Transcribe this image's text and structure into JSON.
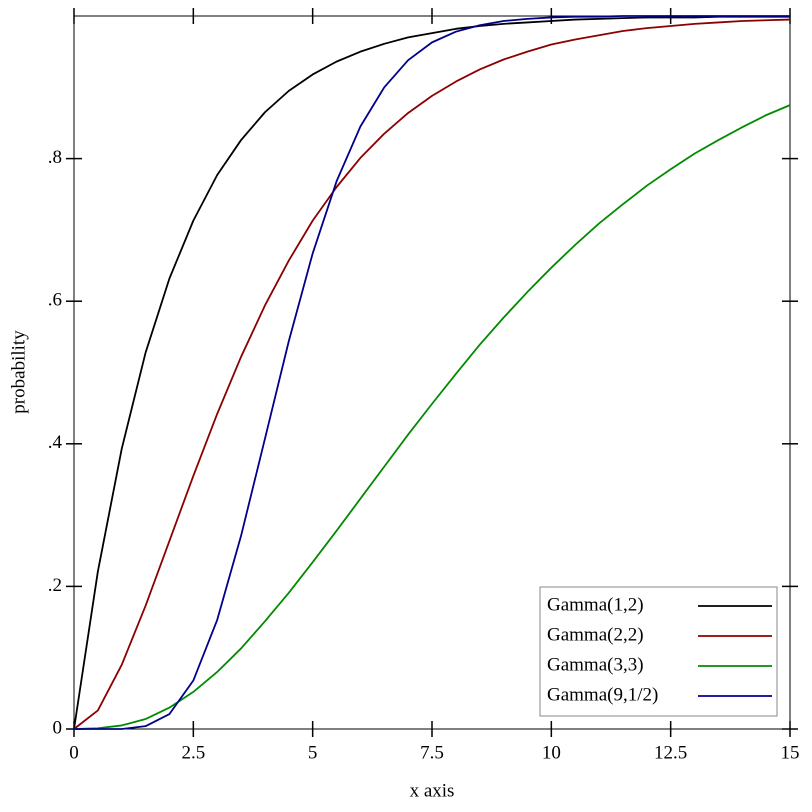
{
  "chart_data": {
    "type": "line",
    "x_label": "x axis",
    "y_label": "probability",
    "x": [
      0,
      0.5,
      1,
      1.5,
      2,
      2.5,
      3,
      3.5,
      4,
      4.5,
      5,
      5.5,
      6,
      6.5,
      7,
      7.5,
      8,
      8.5,
      9,
      9.5,
      10,
      10.5,
      11,
      11.5,
      12,
      12.5,
      13,
      13.5,
      14,
      14.5,
      15
    ],
    "series": [
      {
        "name": "Gamma(1,2)",
        "color": "#000000",
        "values": [
          0,
          0.221,
          0.393,
          0.528,
          0.632,
          0.713,
          0.777,
          0.826,
          0.865,
          0.895,
          0.918,
          0.936,
          0.95,
          0.961,
          0.97,
          0.976,
          0.982,
          0.986,
          0.989,
          0.991,
          0.993,
          0.995,
          0.996,
          0.997,
          0.998,
          0.998,
          0.998,
          0.999,
          0.999,
          0.999,
          0.999
        ]
      },
      {
        "name": "Gamma(2,2)",
        "color": "#8b0000",
        "values": [
          0,
          0.026,
          0.09,
          0.173,
          0.264,
          0.355,
          0.442,
          0.522,
          0.594,
          0.657,
          0.713,
          0.76,
          0.801,
          0.835,
          0.864,
          0.888,
          0.908,
          0.925,
          0.939,
          0.95,
          0.96,
          0.967,
          0.973,
          0.979,
          0.983,
          0.986,
          0.989,
          0.991,
          0.993,
          0.994,
          0.995
        ]
      },
      {
        "name": "Gamma(3,3)",
        "color": "#008b00",
        "values": [
          0,
          0.001,
          0.005,
          0.014,
          0.03,
          0.052,
          0.08,
          0.113,
          0.151,
          0.191,
          0.234,
          0.278,
          0.323,
          0.368,
          0.413,
          0.456,
          0.498,
          0.539,
          0.577,
          0.613,
          0.647,
          0.679,
          0.709,
          0.736,
          0.762,
          0.785,
          0.807,
          0.826,
          0.844,
          0.861,
          0.875
        ]
      },
      {
        "name": "Gamma(9,1/2)",
        "color": "#00008b",
        "values": [
          0,
          0,
          0,
          0.004,
          0.021,
          0.068,
          0.153,
          0.271,
          0.407,
          0.544,
          0.667,
          0.768,
          0.845,
          0.9,
          0.938,
          0.963,
          0.978,
          0.987,
          0.993,
          0.996,
          0.998,
          0.999,
          0.999,
          1,
          1,
          1,
          1,
          1,
          1,
          1,
          1
        ]
      }
    ],
    "xlim": [
      0,
      15
    ],
    "ylim": [
      0,
      1
    ],
    "xticks": [
      0,
      2.5,
      5,
      7.5,
      10,
      12.5,
      15
    ],
    "yticks": [
      0,
      {
        "value": 0.2,
        "label": ".2"
      },
      {
        "value": 0.4,
        "label": ".4"
      },
      {
        "value": 0.6,
        "label": ".6"
      },
      {
        "value": 0.8,
        "label": ".8"
      }
    ],
    "legend": "bottom-right",
    "grid": false
  }
}
